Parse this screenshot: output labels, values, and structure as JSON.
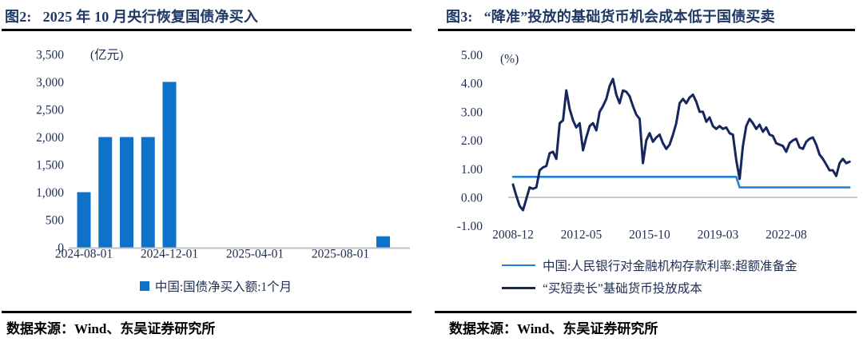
{
  "colors": {
    "title": "#1F3864",
    "tick_text": "#1F2D50",
    "bar": "#0E72C8",
    "reserve_line": "#2080D8",
    "cost_line": "#17265C",
    "zero_line": "#C0C0C0",
    "rule": "#000000"
  },
  "chart_data": [
    {
      "type": "bar",
      "fig_label": "图2:",
      "title": "2025 年 10 月央行恢复国债净买入",
      "unit": "(亿元)",
      "categories": [
        "2024-08",
        "2024-09",
        "2024-10",
        "2024-11",
        "2024-12",
        "2025-01",
        "2025-02",
        "2025-03",
        "2025-04",
        "2025-05",
        "2025-06",
        "2025-07",
        "2025-08",
        "2025-09",
        "2025-10"
      ],
      "values": [
        1000,
        2000,
        2000,
        2000,
        3000,
        0,
        0,
        0,
        0,
        0,
        0,
        0,
        0,
        0,
        200
      ],
      "x_ticks": [
        "2024-08-01",
        "2024-12-01",
        "2025-04-01",
        "2025-08-01"
      ],
      "y_ticks": [
        0,
        500,
        1000,
        1500,
        2000,
        2500,
        3000,
        3500
      ],
      "y_tick_labels": [
        "0",
        "500",
        "1,000",
        "1,500",
        "2,000",
        "2,500",
        "3,000",
        "3,500"
      ],
      "ylim": [
        0,
        3500
      ],
      "grid": false,
      "legend_position": "bottom",
      "legend": [
        "中国:国债净买入额:1个月"
      ],
      "bar_color": "#0E72C8",
      "source": "数据来源：Wind、东吴证券研究所"
    },
    {
      "type": "line",
      "fig_label": "图3:",
      "title": "“降准”投放的基础货币机会成本低于国债买卖",
      "unit": "(%)",
      "x": [
        "2008-12",
        "2009-02",
        "2009-04",
        "2009-06",
        "2009-08",
        "2009-10",
        "2009-12",
        "2010-02",
        "2010-04",
        "2010-06",
        "2010-08",
        "2010-10",
        "2010-12",
        "2011-02",
        "2011-04",
        "2011-06",
        "2011-08",
        "2011-10",
        "2011-12",
        "2012-02",
        "2012-04",
        "2012-06",
        "2012-08",
        "2012-10",
        "2012-12",
        "2013-02",
        "2013-04",
        "2013-06",
        "2013-08",
        "2013-10",
        "2013-12",
        "2014-02",
        "2014-04",
        "2014-06",
        "2014-08",
        "2014-10",
        "2014-12",
        "2015-02",
        "2015-04",
        "2015-06",
        "2015-08",
        "2015-10",
        "2015-12",
        "2016-02",
        "2016-04",
        "2016-06",
        "2016-08",
        "2016-10",
        "2016-12",
        "2017-02",
        "2017-04",
        "2017-06",
        "2017-08",
        "2017-10",
        "2017-12",
        "2018-02",
        "2018-04",
        "2018-06",
        "2018-08",
        "2018-10",
        "2018-12",
        "2019-02",
        "2019-04",
        "2019-06",
        "2019-08",
        "2019-10",
        "2019-12",
        "2020-02",
        "2020-04",
        "2020-06",
        "2020-08",
        "2020-10",
        "2020-12",
        "2021-02",
        "2021-04",
        "2021-06",
        "2021-08",
        "2021-10",
        "2021-12",
        "2022-02",
        "2022-04",
        "2022-06",
        "2022-08",
        "2022-10",
        "2022-12",
        "2023-02",
        "2023-04",
        "2023-06",
        "2023-08",
        "2023-10",
        "2023-12",
        "2024-02",
        "2024-04",
        "2024-06",
        "2024-08",
        "2024-10",
        "2024-12",
        "2025-02",
        "2025-04",
        "2025-06",
        "2025-08",
        "2025-10"
      ],
      "series": [
        {
          "name": "中国:人民银行对金融机构存款利率:超额准备金",
          "color": "#2080D8",
          "segments": [
            {
              "start": "2008-12",
              "end": "2020-03",
              "value": 0.72
            },
            {
              "start": "2020-04",
              "end": "2025-10",
              "value": 0.35
            }
          ]
        },
        {
          "name": "“买短卖长”基础货币投放成本",
          "color": "#17265C",
          "values": [
            0.45,
            0.05,
            -0.3,
            -0.45,
            -0.05,
            0.35,
            0.3,
            0.35,
            0.95,
            1.05,
            1.1,
            1.55,
            1.6,
            1.35,
            2.6,
            2.7,
            3.75,
            3.1,
            2.7,
            2.45,
            2.6,
            1.65,
            2.1,
            2.5,
            2.6,
            2.35,
            3.0,
            3.2,
            3.45,
            3.9,
            4.15,
            3.6,
            3.3,
            3.75,
            3.7,
            3.55,
            3.2,
            2.9,
            2.75,
            1.2,
            2.0,
            2.25,
            1.95,
            2.1,
            2.2,
            1.9,
            1.7,
            1.85,
            2.2,
            2.6,
            3.3,
            3.45,
            3.3,
            3.5,
            3.6,
            3.35,
            3.0,
            3.0,
            2.65,
            2.8,
            2.5,
            2.4,
            2.5,
            2.4,
            2.45,
            2.25,
            2.2,
            1.3,
            0.65,
            1.8,
            2.5,
            2.75,
            2.6,
            2.4,
            2.55,
            2.3,
            2.45,
            2.2,
            2.15,
            1.9,
            1.85,
            1.8,
            1.6,
            1.9,
            2.0,
            2.05,
            1.75,
            1.7,
            1.95,
            2.05,
            2.1,
            1.85,
            1.5,
            1.35,
            1.15,
            0.95,
            0.95,
            0.75,
            1.2,
            1.35,
            1.2,
            1.25
          ]
        }
      ],
      "x_ticks": [
        "2008-12",
        "2012-05",
        "2015-10",
        "2019-03",
        "2022-08"
      ],
      "y_ticks": [
        -1,
        0,
        1,
        2,
        3,
        4,
        5
      ],
      "y_tick_labels": [
        "-1.00",
        "0.00",
        "1.00",
        "2.00",
        "3.00",
        "4.00",
        "5.00"
      ],
      "ylim": [
        -1,
        5
      ],
      "grid": "zero-line-only",
      "legend_position": "bottom",
      "source": "数据来源：Wind、东吴证券研究所"
    }
  ]
}
